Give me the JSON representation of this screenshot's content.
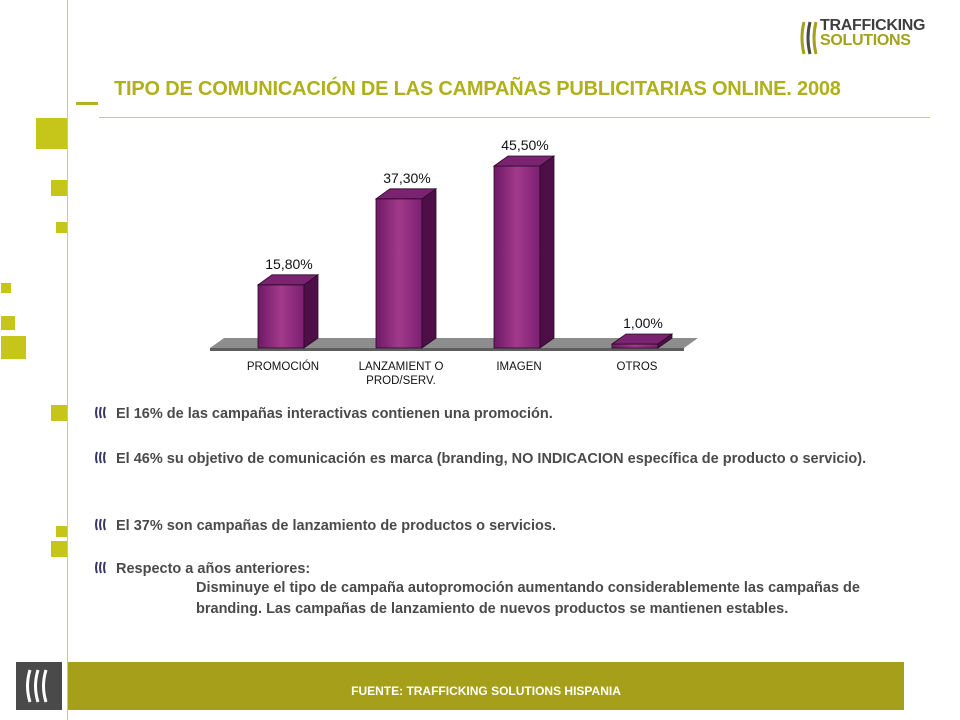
{
  "logo": {
    "line1": "TRAFFICKING",
    "line2": "SOLUTIONS"
  },
  "title": "TIPO DE COMUNICACIÓN DE LAS CAMPAÑAS PUBLICITARIAS ONLINE. 2008",
  "chart_data": {
    "type": "bar",
    "title": "",
    "categories": [
      "PROMOCIÓN",
      "LANZAMIENTO PROD/SERV.",
      "IMAGEN",
      "OTROS"
    ],
    "category_lines": [
      [
        "PROMOCIÓN"
      ],
      [
        "LANZAMIENT O",
        "PROD/SERV."
      ],
      [
        "IMAGEN"
      ],
      [
        "OTROS"
      ]
    ],
    "values": [
      15.8,
      37.3,
      45.5,
      1.0
    ],
    "data_labels": [
      "15,80%",
      "37,30%",
      "45,50%",
      "1,00%"
    ],
    "ylim": [
      0,
      50
    ],
    "grid": false,
    "legend": "none",
    "bar_color": "#8e2a7e"
  },
  "bullets": [
    {
      "text": "El 16% de las campañas interactivas contienen una promoción."
    },
    {
      "text": "El 46% su objetivo de comunicación es marca (branding, NO INDICACION específica de producto o servicio)."
    },
    {
      "text": "El 37% son campañas de lanzamiento de productos o servicios."
    },
    {
      "text": "Respecto a años anteriores:"
    }
  ],
  "sub_text": "Disminuye el tipo de campaña autopromoción aumentando considerablemente las campañas de branding. Las campañas de lanzamiento de nuevos productos se mantienen estables.",
  "footer": "FUENTE: TRAFFICKING SOLUTIONS HISPANIA",
  "colors": {
    "accent": "#b0b01a",
    "footer": "#a59f1a",
    "bar": "#8e2a7e"
  }
}
